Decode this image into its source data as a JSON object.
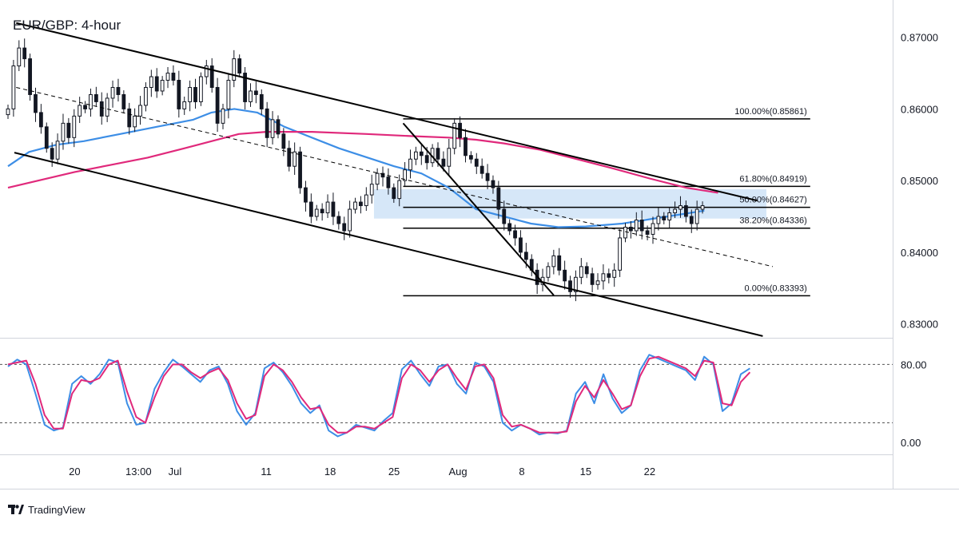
{
  "window": {
    "title": "EUR/GBP: 4-hour"
  },
  "brand": {
    "name": "TradingView",
    "logo_icon": "tradingview-logo-icon"
  },
  "colors": {
    "candle": "#131722",
    "ma_fast": "#3d8ee6",
    "ma_slow": "#e0297b",
    "stoch_k": "#3d8ee6",
    "stoch_d": "#e0297b",
    "zone_fill": "#d6e7f8",
    "trendline": "#000000"
  },
  "chart_data": [
    {
      "type": "candlestick",
      "title": "EUR/GBP: 4-hour",
      "ylim": [
        0.8284,
        0.8752
      ],
      "y_ticks": [
        "0.87000",
        "0.86000",
        "0.85000",
        "0.84000",
        "0.83000"
      ],
      "x_ticks": [
        "20",
        "13:00",
        "Jul",
        "11",
        "18",
        "25",
        "Aug",
        "8",
        "15",
        "22"
      ],
      "x_tick_days": [
        20,
        27,
        31,
        41,
        48,
        55,
        62,
        69,
        76,
        83
      ],
      "x_axis_note": "days counted from June 1",
      "fibonacci": [
        {
          "label": "100.00%(0.85861)",
          "value": 0.85861
        },
        {
          "label": "61.80%(0.84919)",
          "value": 0.84919
        },
        {
          "label": "50.00%(0.84627)",
          "value": 0.84627
        },
        {
          "label": "38.20%(0.84336)",
          "value": 0.84336
        },
        {
          "label": "0.00%(0.83393)",
          "value": 0.83393
        }
      ],
      "resistance_zone": {
        "from_day": 52.8,
        "to_day": 95.8,
        "low": 0.8447,
        "high": 0.8488
      },
      "trendlines": [
        {
          "name": "channel-upper",
          "from": [
            13.6,
            0.872
          ],
          "to": [
            94.8,
            0.8472
          ]
        },
        {
          "name": "channel-lower",
          "from": [
            13.4,
            0.8539
          ],
          "to": [
            95.4,
            0.8283
          ]
        },
        {
          "name": "channel-midline",
          "from": [
            13.6,
            0.863
          ],
          "to": [
            96.5,
            0.838
          ]
        },
        {
          "name": "swing-line",
          "from": [
            56.0,
            0.858
          ],
          "to": [
            72.5,
            0.834
          ]
        }
      ],
      "candles_close": [
        0.86,
        0.866,
        0.8685,
        0.867,
        0.862,
        0.8595,
        0.8575,
        0.8545,
        0.853,
        0.8555,
        0.858,
        0.856,
        0.859,
        0.8605,
        0.86,
        0.862,
        0.861,
        0.859,
        0.8615,
        0.863,
        0.862,
        0.86,
        0.8575,
        0.859,
        0.8605,
        0.863,
        0.8645,
        0.8625,
        0.864,
        0.865,
        0.864,
        0.86,
        0.861,
        0.863,
        0.861,
        0.8645,
        0.866,
        0.863,
        0.858,
        0.86,
        0.864,
        0.867,
        0.865,
        0.861,
        0.8625,
        0.862,
        0.86,
        0.856,
        0.8585,
        0.8565,
        0.8545,
        0.852,
        0.854,
        0.849,
        0.847,
        0.845,
        0.846,
        0.8455,
        0.847,
        0.845,
        0.844,
        0.843,
        0.846,
        0.847,
        0.8465,
        0.848,
        0.8495,
        0.851,
        0.8505,
        0.849,
        0.8475,
        0.85,
        0.8515,
        0.853,
        0.854,
        0.8535,
        0.8525,
        0.8545,
        0.853,
        0.852,
        0.8545,
        0.858,
        0.856,
        0.8535,
        0.853,
        0.852,
        0.851,
        0.85,
        0.849,
        0.846,
        0.844,
        0.843,
        0.842,
        0.84,
        0.839,
        0.8375,
        0.8355,
        0.8365,
        0.838,
        0.8395,
        0.8375,
        0.836,
        0.8345,
        0.8365,
        0.838,
        0.837,
        0.8355,
        0.836,
        0.837,
        0.8365,
        0.8375,
        0.842,
        0.8435,
        0.843,
        0.8445,
        0.843,
        0.8425,
        0.844,
        0.845,
        0.8445,
        0.8455,
        0.846,
        0.8465,
        0.845,
        0.844,
        0.846,
        0.8465
      ],
      "series": [
        {
          "values_note": "blue moving average",
          "values": [
            0.852,
            0.854,
            0.855,
            0.8555,
            0.8565,
            0.8575,
            0.8585,
            0.8595,
            0.86,
            0.8595,
            0.8575,
            0.8545,
            0.852,
            0.851,
            0.849,
            0.846,
            0.845,
            0.844,
            0.8435,
            0.8436,
            0.844,
            0.845,
            0.8458
          ]
        },
        {
          "values_note": "pink moving average",
          "values": [
            0.849,
            0.85,
            0.8512,
            0.8522,
            0.8532,
            0.8545,
            0.8555,
            0.8565,
            0.8568,
            0.8568,
            0.8565,
            0.8562,
            0.856,
            0.8557,
            0.8552,
            0.8543,
            0.853,
            0.8517,
            0.8503,
            0.849,
            0.8483
          ]
        }
      ],
      "ma_days": [
        [
          12.7,
          15,
          18,
          21,
          25,
          29,
          33,
          35,
          37.5,
          40,
          43,
          49,
          55,
          58,
          61,
          64,
          67,
          70,
          73,
          76,
          80,
          85,
          89
        ],
        [
          12.7,
          16,
          20,
          24,
          28,
          32,
          35,
          38,
          41,
          46,
          52,
          57,
          61,
          64,
          67,
          71,
          75,
          79,
          83,
          87,
          90.5
        ]
      ]
    },
    {
      "type": "line",
      "title": "",
      "ylim": [
        -10,
        105
      ],
      "y_ticks": [
        "80.00",
        "0.00"
      ],
      "dashed_levels": [
        80,
        20
      ],
      "series": [
        {
          "values_note": "blue %K",
          "values": [
            78,
            85,
            80,
            50,
            18,
            12,
            15,
            60,
            68,
            60,
            70,
            85,
            82,
            40,
            18,
            20,
            55,
            72,
            85,
            78,
            70,
            62,
            74,
            78,
            60,
            32,
            18,
            30,
            76,
            82,
            72,
            58,
            40,
            30,
            38,
            12,
            6,
            10,
            18,
            15,
            12,
            22,
            30,
            75,
            84,
            70,
            58,
            78,
            80,
            60,
            50,
            82,
            78,
            62,
            20,
            12,
            18,
            14,
            8,
            10,
            9,
            12,
            50,
            62,
            40,
            70,
            45,
            30,
            38,
            74,
            90,
            86,
            82,
            78,
            74,
            64,
            88,
            80,
            32,
            40,
            70,
            76
          ]
        },
        {
          "values_note": "pink %D",
          "values": [
            80,
            82,
            84,
            60,
            28,
            14,
            14,
            50,
            64,
            62,
            66,
            80,
            84,
            52,
            26,
            20,
            46,
            68,
            80,
            80,
            72,
            66,
            72,
            76,
            64,
            40,
            24,
            28,
            68,
            80,
            74,
            62,
            46,
            34,
            36,
            18,
            10,
            10,
            16,
            16,
            14,
            20,
            26,
            66,
            80,
            74,
            62,
            74,
            80,
            66,
            54,
            78,
            80,
            66,
            28,
            16,
            18,
            14,
            10,
            10,
            10,
            11,
            42,
            58,
            46,
            64,
            50,
            34,
            38,
            68,
            86,
            88,
            84,
            80,
            76,
            68,
            84,
            82,
            40,
            38,
            62,
            72
          ]
        }
      ],
      "x_start_day": 12.7,
      "x_end_day": 94
    }
  ]
}
